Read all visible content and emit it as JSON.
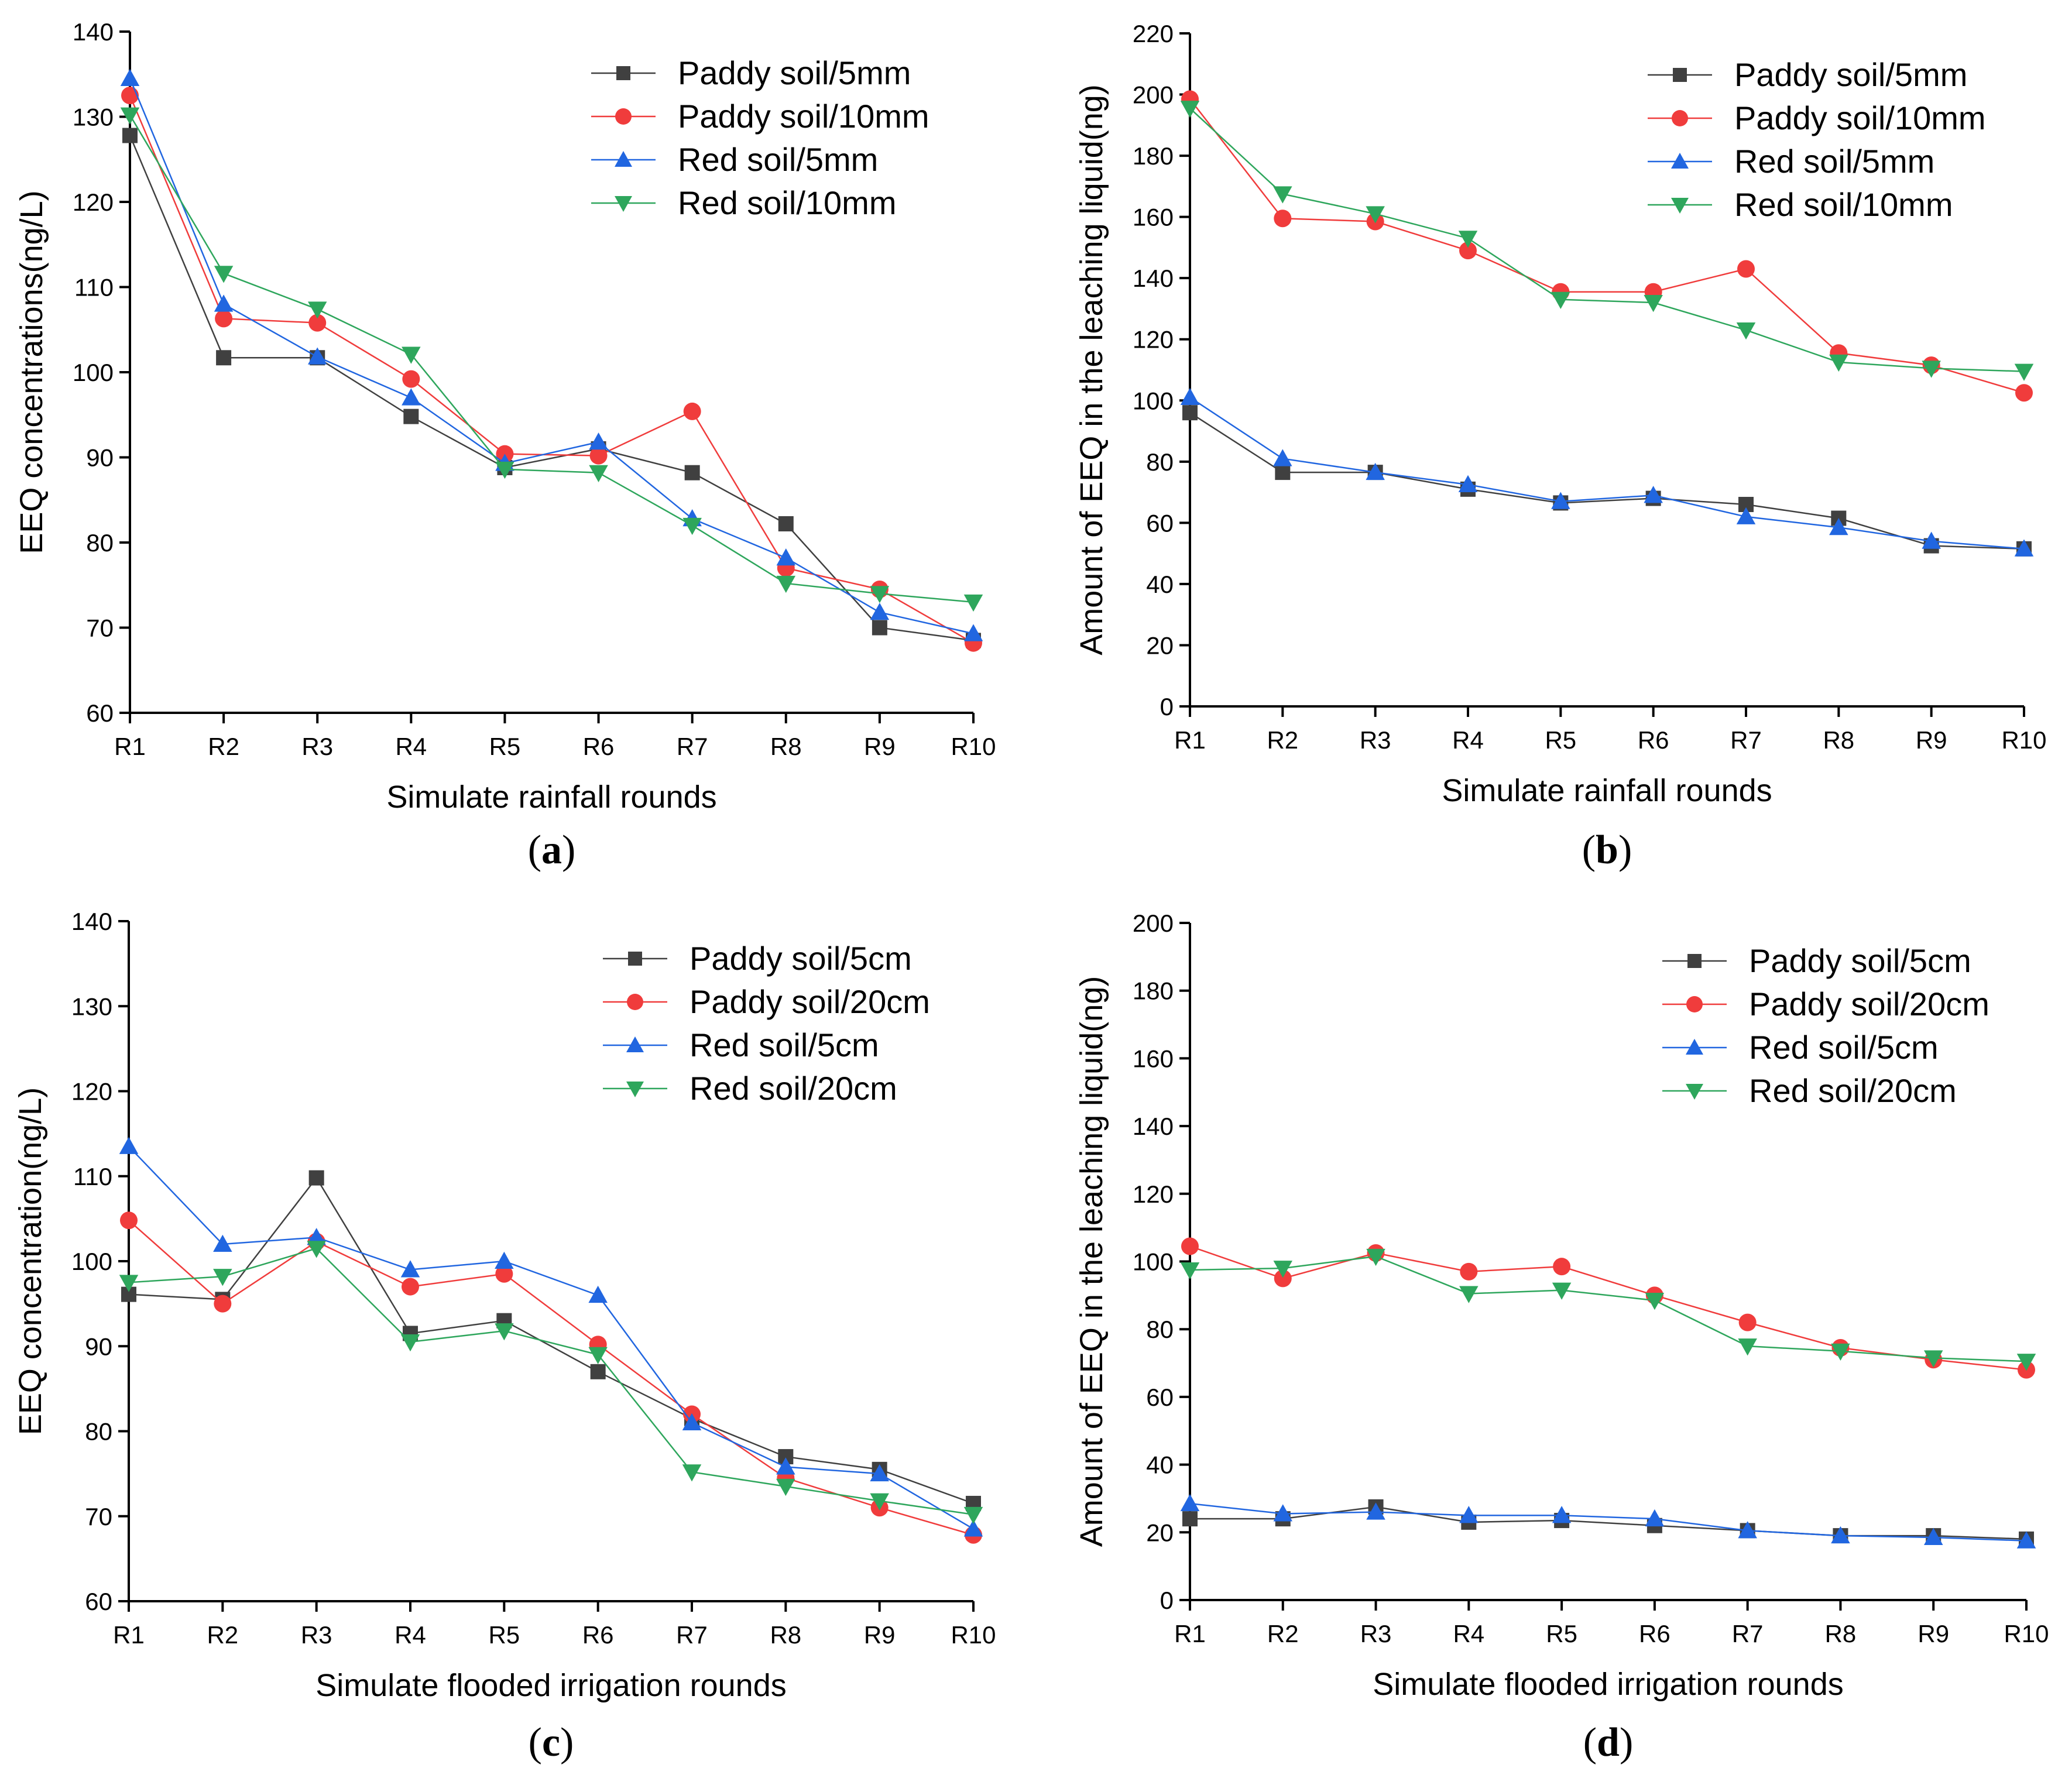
{
  "chart_data": [
    {
      "type": "line",
      "panel_label": "a",
      "xlabel": "Simulate rainfall rounds",
      "ylabel": "EEQ concentrations(ng/L)",
      "categories": [
        "R1",
        "R2",
        "R3",
        "R4",
        "R5",
        "R6",
        "R7",
        "R8",
        "R9",
        "R10"
      ],
      "ylim": [
        60,
        140
      ],
      "yticks": [
        60,
        70,
        80,
        90,
        100,
        110,
        120,
        130,
        140
      ],
      "legend_position": "top-right",
      "series": [
        {
          "name": "Paddy soil/5mm",
          "color": "#404040",
          "marker": "square",
          "values": [
            127.8,
            101.7,
            101.7,
            94.8,
            88.8,
            91.0,
            88.2,
            82.2,
            70.0,
            68.5
          ]
        },
        {
          "name": "Paddy soil/10mm",
          "color": "#f03c3c",
          "marker": "circle",
          "values": [
            132.5,
            106.3,
            105.8,
            99.2,
            90.4,
            90.2,
            95.4,
            77.0,
            74.5,
            68.2
          ]
        },
        {
          "name": "Red soil/5mm",
          "color": "#2166e0",
          "marker": "triangle-up",
          "values": [
            134.5,
            108.0,
            101.8,
            97.0,
            89.3,
            91.8,
            82.8,
            78.2,
            71.8,
            69.3
          ]
        },
        {
          "name": "Red soil/10mm",
          "color": "#2ea65c",
          "marker": "triangle-down",
          "values": [
            130.2,
            111.6,
            107.4,
            102.1,
            88.6,
            88.2,
            82.0,
            75.2,
            74.0,
            73.0
          ]
        }
      ]
    },
    {
      "type": "line",
      "panel_label": "b",
      "xlabel": "Simulate rainfall rounds",
      "ylabel": "Amount of EEQ in the leaching liquid(ng)",
      "categories": [
        "R1",
        "R2",
        "R3",
        "R4",
        "R5",
        "R6",
        "R7",
        "R8",
        "R9",
        "R10"
      ],
      "ylim": [
        0,
        220
      ],
      "yticks": [
        0,
        20,
        40,
        60,
        80,
        100,
        120,
        140,
        160,
        180,
        200,
        220
      ],
      "legend_position": "top-right",
      "series": [
        {
          "name": "Paddy soil/5mm",
          "color": "#404040",
          "marker": "square",
          "values": [
            96.0,
            76.5,
            76.5,
            71.0,
            66.5,
            68.0,
            66.0,
            61.5,
            52.5,
            51.5
          ]
        },
        {
          "name": "Paddy soil/10mm",
          "color": "#f03c3c",
          "marker": "circle",
          "values": [
            198.5,
            159.5,
            158.5,
            149.0,
            135.5,
            135.5,
            143.0,
            115.5,
            111.5,
            102.5
          ]
        },
        {
          "name": "Red soil/5mm",
          "color": "#2166e0",
          "marker": "triangle-up",
          "values": [
            101.0,
            81.0,
            76.5,
            72.5,
            67.0,
            69.0,
            62.0,
            58.5,
            54.0,
            51.5
          ]
        },
        {
          "name": "Red soil/10mm",
          "color": "#2ea65c",
          "marker": "triangle-down",
          "values": [
            195.5,
            167.5,
            161.0,
            153.0,
            133.0,
            132.0,
            123.0,
            112.5,
            110.5,
            109.5
          ]
        }
      ]
    },
    {
      "type": "line",
      "panel_label": "c",
      "xlabel": "Simulate flooded irrigation rounds",
      "ylabel": "EEQ concentration(ng/L)",
      "categories": [
        "R1",
        "R2",
        "R3",
        "R4",
        "R5",
        "R6",
        "R7",
        "R8",
        "R9",
        "R10"
      ],
      "ylim": [
        60,
        140
      ],
      "yticks": [
        60,
        70,
        80,
        90,
        100,
        110,
        120,
        130,
        140
      ],
      "legend_position": "top-right",
      "series": [
        {
          "name": "Paddy soil/5cm",
          "color": "#404040",
          "marker": "square",
          "values": [
            96.1,
            95.5,
            109.8,
            91.5,
            93.0,
            87.0,
            81.5,
            77.0,
            75.5,
            71.5
          ]
        },
        {
          "name": "Paddy soil/20cm",
          "color": "#f03c3c",
          "marker": "circle",
          "values": [
            104.8,
            95.0,
            102.3,
            97.0,
            98.5,
            90.2,
            82.0,
            74.5,
            71.0,
            67.8
          ]
        },
        {
          "name": "Red soil/5cm",
          "color": "#2166e0",
          "marker": "triangle-up",
          "values": [
            113.5,
            102.0,
            102.8,
            99.0,
            100.0,
            96.0,
            81.0,
            75.8,
            75.0,
            68.5
          ]
        },
        {
          "name": "Red soil/20cm",
          "color": "#2ea65c",
          "marker": "triangle-down",
          "values": [
            97.5,
            98.2,
            101.5,
            90.5,
            91.8,
            89.0,
            75.2,
            73.5,
            71.8,
            70.2
          ]
        }
      ]
    },
    {
      "type": "line",
      "panel_label": "d",
      "xlabel": "Simulate flooded irrigation rounds",
      "ylabel": "Amount of EEQ in the leaching liquid(ng)",
      "categories": [
        "R1",
        "R2",
        "R3",
        "R4",
        "R5",
        "R6",
        "R7",
        "R8",
        "R9",
        "R10"
      ],
      "ylim": [
        0,
        200
      ],
      "yticks": [
        0,
        20,
        40,
        60,
        80,
        100,
        120,
        140,
        160,
        180,
        200
      ],
      "legend_position": "top-right",
      "series": [
        {
          "name": "Paddy soil/5cm",
          "color": "#404040",
          "marker": "square",
          "values": [
            24.0,
            24.0,
            27.5,
            23.0,
            23.5,
            22.0,
            20.5,
            19.0,
            19.0,
            18.0
          ]
        },
        {
          "name": "Paddy soil/20cm",
          "color": "#f03c3c",
          "marker": "circle",
          "values": [
            104.5,
            95.0,
            102.5,
            97.0,
            98.5,
            90.0,
            82.0,
            74.5,
            71.0,
            68.0
          ]
        },
        {
          "name": "Red soil/5cm",
          "color": "#2166e0",
          "marker": "triangle-up",
          "values": [
            28.5,
            25.5,
            26.0,
            25.0,
            25.0,
            24.0,
            20.5,
            19.0,
            18.5,
            17.5
          ]
        },
        {
          "name": "Red soil/20cm",
          "color": "#2ea65c",
          "marker": "triangle-down",
          "values": [
            97.5,
            98.0,
            101.5,
            90.5,
            91.5,
            88.5,
            75.0,
            73.5,
            71.5,
            70.5
          ]
        }
      ]
    }
  ]
}
